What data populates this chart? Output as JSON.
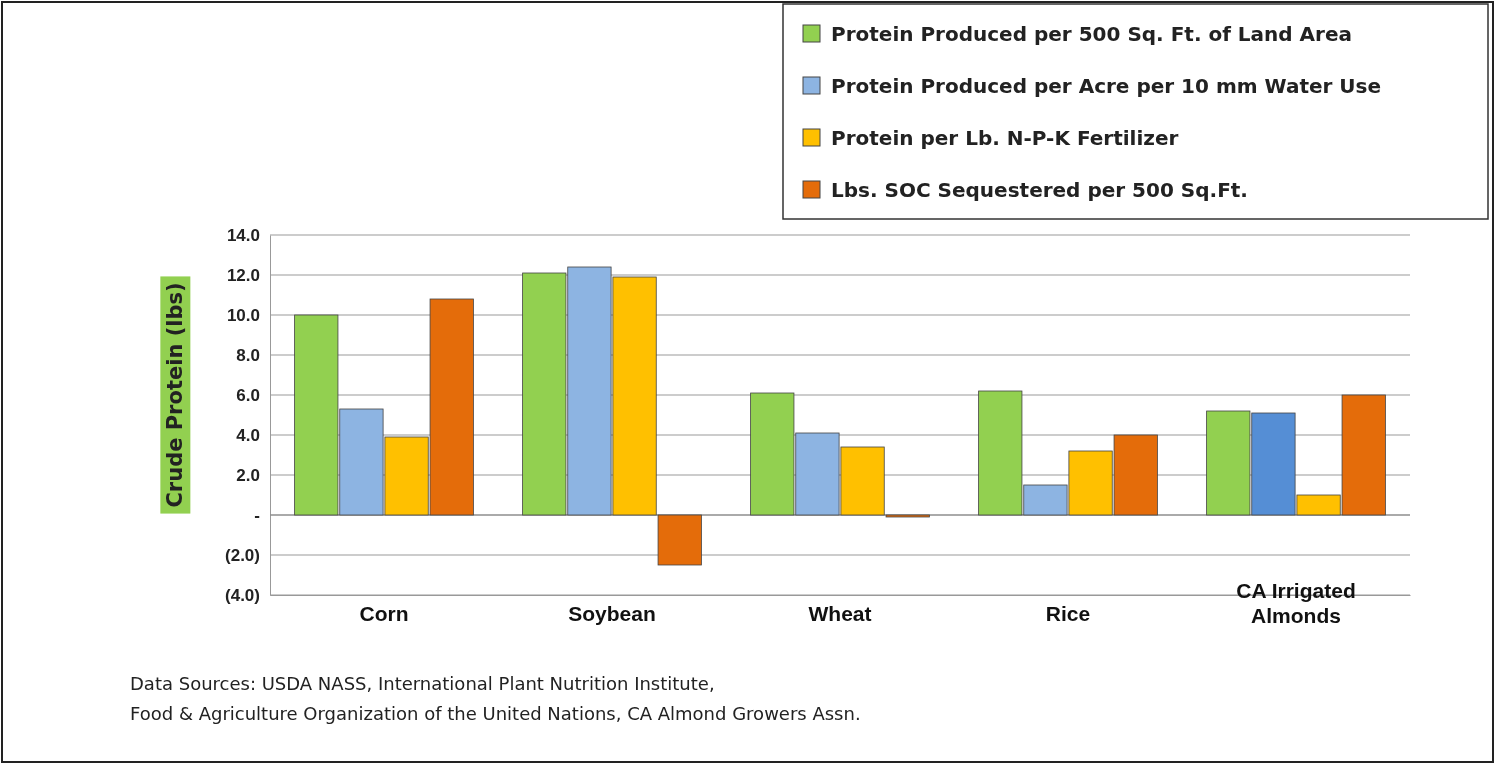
{
  "chart_data": {
    "type": "bar",
    "ylabel": "Crude Protein (lbs)",
    "categories": [
      "Corn",
      "Soybean",
      "Wheat",
      "Rice",
      "CA Irrigated Almonds"
    ],
    "series": [
      {
        "name": "Protein Produced per 500 Sq. Ft. of Land Area",
        "color": "#92d050",
        "values": [
          10.0,
          12.1,
          6.1,
          6.2,
          5.2
        ]
      },
      {
        "name": "Protein Produced per Acre per 10 mm Water Use",
        "color": "#8db4e2",
        "colors": [
          "#8db4e2",
          "#8db4e2",
          "#8db4e2",
          "#8db4e2",
          "#558ed5"
        ],
        "values": [
          5.3,
          12.4,
          4.1,
          1.5,
          5.1
        ]
      },
      {
        "name": "Protein per Lb. N-P-K Fertilizer",
        "color": "#ffc000",
        "values": [
          3.9,
          11.9,
          3.4,
          3.2,
          1.0
        ]
      },
      {
        "name": "Lbs. SOC Sequestered per 500 Sq.Ft.",
        "color": "#e46c0a",
        "values": [
          10.8,
          -2.5,
          -0.1,
          4.0,
          6.0
        ]
      }
    ],
    "ylim": [
      -4,
      14
    ],
    "yticks": [
      {
        "value": -4,
        "label": "(4.0)"
      },
      {
        "value": -2,
        "label": "(2.0)"
      },
      {
        "value": 0,
        "label": "-"
      },
      {
        "value": 2,
        "label": "2.0"
      },
      {
        "value": 4,
        "label": "4.0"
      },
      {
        "value": 6,
        "label": "6.0"
      },
      {
        "value": 8,
        "label": "8.0"
      },
      {
        "value": 10,
        "label": "10.0"
      },
      {
        "value": 12,
        "label": "12.0"
      },
      {
        "value": 14,
        "label": "14.0"
      }
    ],
    "grid": "y",
    "legend": "top right",
    "annotations": [
      "Data Sources: USDA NASS, International Plant Nutrition Institute,",
      "Food & Agriculture Organization of the United Nations, CA Almond Growers Assn."
    ]
  }
}
